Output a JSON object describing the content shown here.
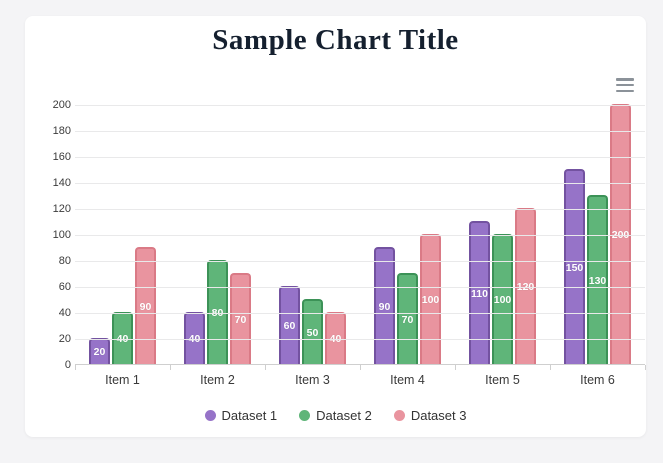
{
  "page": {
    "background_color": "#f4f4f6",
    "card_background_color": "#ffffff"
  },
  "header": {
    "title": "Sample Chart Title",
    "title_color": "#15202f"
  },
  "toolbar": {
    "menu_icon": "hamburger-menu-icon"
  },
  "chart_data": {
    "type": "bar",
    "title": "Sample Chart Title",
    "categories": [
      "Item 1",
      "Item 2",
      "Item 3",
      "Item 4",
      "Item 5",
      "Item 6"
    ],
    "series": [
      {
        "name": "Dataset 1",
        "color": "#9673c8",
        "border_color": "#7352a0",
        "values": [
          20,
          40,
          60,
          90,
          110,
          150
        ]
      },
      {
        "name": "Dataset 2",
        "color": "#5fb579",
        "border_color": "#3c9257",
        "values": [
          40,
          80,
          50,
          70,
          100,
          130
        ]
      },
      {
        "name": "Dataset 3",
        "color": "#e9949f",
        "border_color": "#da7a86",
        "values": [
          90,
          70,
          40,
          100,
          120,
          200
        ]
      }
    ],
    "ylim": [
      0,
      200
    ],
    "yticks": [
      0,
      20,
      40,
      60,
      80,
      100,
      120,
      140,
      160,
      180,
      200
    ],
    "grid": true,
    "gridline_color": "#e9e9ea",
    "value_labels": "inside-center-white",
    "legend_position": "bottom",
    "xlabel": "",
    "ylabel": ""
  }
}
